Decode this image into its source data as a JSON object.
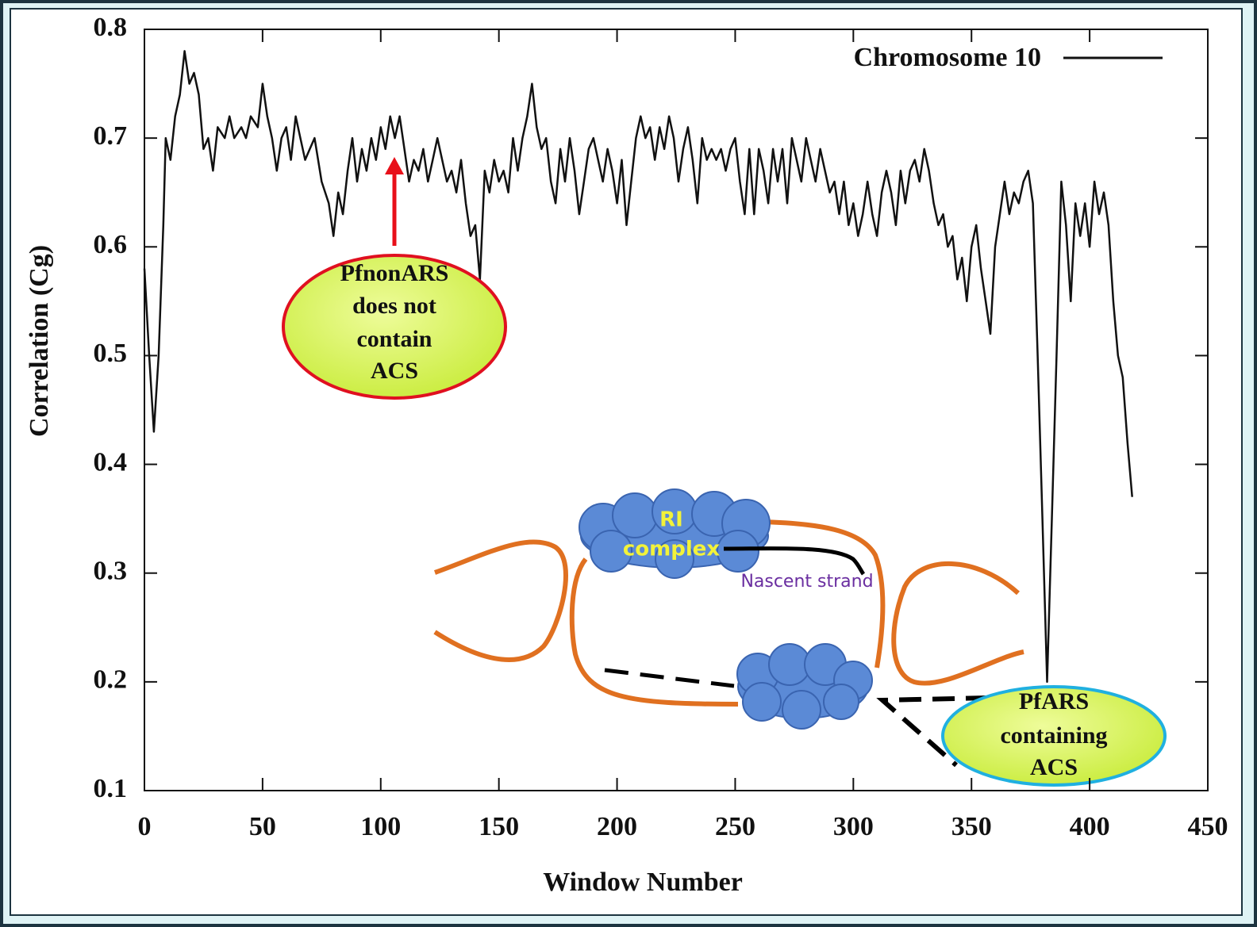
{
  "chart_data": {
    "type": "line",
    "xlabel": "Window Number",
    "ylabel": "Correlation (Cg)",
    "xlim": [
      0,
      450
    ],
    "xticks": [
      0,
      50,
      100,
      150,
      200,
      250,
      300,
      350,
      400,
      450
    ],
    "ylim": [
      0.1,
      0.8
    ],
    "yticks": [
      0.1,
      0.2,
      0.3,
      0.4,
      0.5,
      0.6,
      0.7,
      0.8
    ],
    "legend": "top-right",
    "series": [
      {
        "name": "Chromosome 10",
        "color": "#111111",
        "x": [
          0,
          2,
          4,
          6,
          8,
          9,
          11,
          13,
          15,
          17,
          19,
          21,
          23,
          25,
          27,
          29,
          31,
          34,
          36,
          38,
          41,
          43,
          45,
          48,
          50,
          52,
          54,
          56,
          58,
          60,
          62,
          64,
          66,
          68,
          70,
          72,
          75,
          78,
          80,
          82,
          84,
          86,
          88,
          90,
          92,
          94,
          96,
          98,
          100,
          102,
          104,
          106,
          108,
          110,
          112,
          114,
          116,
          118,
          120,
          122,
          124,
          126,
          128,
          130,
          132,
          134,
          136,
          138,
          140,
          142,
          144,
          146,
          148,
          150,
          152,
          154,
          156,
          158,
          160,
          162,
          164,
          166,
          168,
          170,
          172,
          174,
          176,
          178,
          180,
          182,
          184,
          186,
          188,
          190,
          192,
          194,
          196,
          198,
          200,
          202,
          204,
          206,
          208,
          210,
          212,
          214,
          216,
          218,
          220,
          222,
          224,
          226,
          228,
          230,
          232,
          234,
          236,
          238,
          240,
          242,
          244,
          246,
          248,
          250,
          252,
          254,
          256,
          258,
          260,
          262,
          264,
          266,
          268,
          270,
          272,
          274,
          276,
          278,
          280,
          282,
          284,
          286,
          288,
          290,
          292,
          294,
          296,
          298,
          300,
          302,
          304,
          306,
          308,
          310,
          312,
          314,
          316,
          318,
          320,
          322,
          324,
          326,
          328,
          330,
          332,
          334,
          336,
          338,
          340,
          342,
          344,
          346,
          348,
          350,
          352,
          354,
          356,
          358,
          360,
          362,
          364,
          366,
          368,
          370,
          372,
          374,
          376,
          378,
          380,
          382,
          384,
          386,
          388,
          390,
          392,
          394,
          396,
          398,
          400,
          402,
          404,
          406,
          408,
          410,
          412,
          414,
          416,
          418
        ],
        "values": [
          0.58,
          0.5,
          0.43,
          0.5,
          0.62,
          0.7,
          0.68,
          0.72,
          0.74,
          0.78,
          0.75,
          0.76,
          0.74,
          0.69,
          0.7,
          0.67,
          0.71,
          0.7,
          0.72,
          0.7,
          0.71,
          0.7,
          0.72,
          0.71,
          0.75,
          0.72,
          0.7,
          0.67,
          0.7,
          0.71,
          0.68,
          0.72,
          0.7,
          0.68,
          0.69,
          0.7,
          0.66,
          0.64,
          0.61,
          0.65,
          0.63,
          0.67,
          0.7,
          0.66,
          0.69,
          0.67,
          0.7,
          0.68,
          0.71,
          0.69,
          0.72,
          0.7,
          0.72,
          0.69,
          0.66,
          0.68,
          0.67,
          0.69,
          0.66,
          0.68,
          0.7,
          0.68,
          0.66,
          0.67,
          0.65,
          0.68,
          0.64,
          0.61,
          0.62,
          0.57,
          0.67,
          0.65,
          0.68,
          0.66,
          0.67,
          0.65,
          0.7,
          0.67,
          0.7,
          0.72,
          0.75,
          0.71,
          0.69,
          0.7,
          0.66,
          0.64,
          0.69,
          0.66,
          0.7,
          0.67,
          0.63,
          0.66,
          0.69,
          0.7,
          0.68,
          0.66,
          0.69,
          0.67,
          0.64,
          0.68,
          0.62,
          0.66,
          0.7,
          0.72,
          0.7,
          0.71,
          0.68,
          0.71,
          0.69,
          0.72,
          0.7,
          0.66,
          0.69,
          0.71,
          0.68,
          0.64,
          0.7,
          0.68,
          0.69,
          0.68,
          0.69,
          0.67,
          0.69,
          0.7,
          0.66,
          0.63,
          0.69,
          0.63,
          0.69,
          0.67,
          0.64,
          0.69,
          0.66,
          0.69,
          0.64,
          0.7,
          0.68,
          0.66,
          0.7,
          0.68,
          0.66,
          0.69,
          0.67,
          0.65,
          0.66,
          0.63,
          0.66,
          0.62,
          0.64,
          0.61,
          0.63,
          0.66,
          0.63,
          0.61,
          0.65,
          0.67,
          0.65,
          0.62,
          0.67,
          0.64,
          0.67,
          0.68,
          0.66,
          0.69,
          0.67,
          0.64,
          0.62,
          0.63,
          0.6,
          0.61,
          0.57,
          0.59,
          0.55,
          0.6,
          0.62,
          0.58,
          0.55,
          0.52,
          0.6,
          0.63,
          0.66,
          0.63,
          0.65,
          0.64,
          0.66,
          0.67,
          0.64,
          0.5,
          0.35,
          0.2,
          0.35,
          0.5,
          0.66,
          0.62,
          0.55,
          0.64,
          0.61,
          0.64,
          0.6,
          0.66,
          0.63,
          0.65,
          0.62,
          0.55,
          0.5,
          0.48,
          0.42,
          0.37
        ]
      }
    ],
    "annotations": {
      "pfnonars": [
        "PfnonARS",
        "does not",
        "contain",
        "ACS"
      ],
      "pfars": [
        "PfARS",
        "containing",
        "ACS"
      ],
      "ri_complex": [
        "RI",
        "complex"
      ],
      "nascent": "Nascent strand"
    }
  }
}
